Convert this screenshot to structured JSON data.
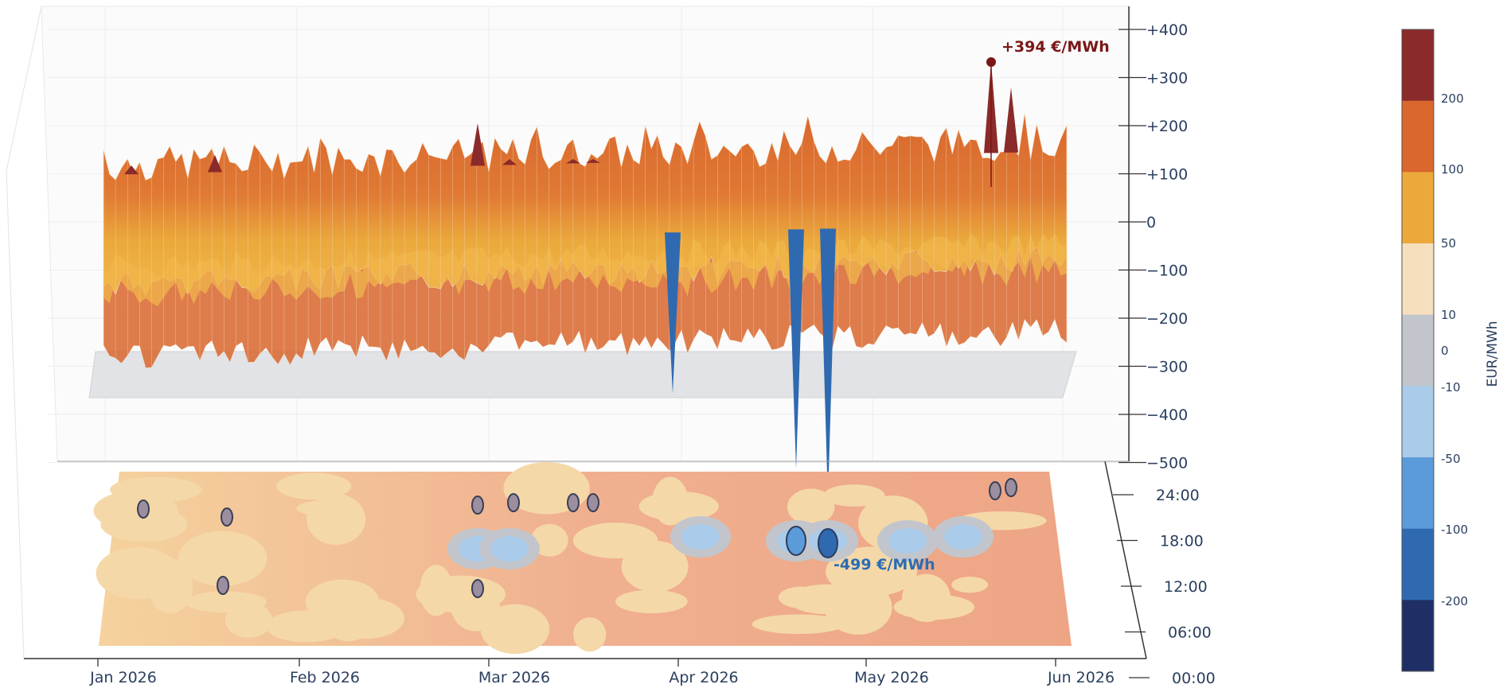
{
  "chart_data": {
    "type": "surface3d",
    "x_axis": {
      "tick_labels": [
        "Jan 2026",
        "Feb 2026",
        "Mar 2026",
        "Apr 2026",
        "May 2026",
        "Jun 2026"
      ],
      "range": [
        "2026-01-01",
        "2026-06-10"
      ]
    },
    "z_axis": {
      "tick_labels": [
        "+400",
        "+300",
        "+200",
        "+100",
        "0",
        "−100",
        "−200",
        "−300",
        "−400",
        "−500"
      ],
      "range": [
        -500,
        400
      ]
    },
    "y_axis": {
      "tick_labels": [
        "24:00",
        "18:00",
        "12:00",
        "06:00",
        "00:00"
      ],
      "range": [
        "00:00",
        "24:00"
      ]
    },
    "annotations": [
      {
        "label": "+394 €/MWh",
        "date": "2026-05-27",
        "hour": 14,
        "value": 394,
        "color": "#7b1717"
      },
      {
        "label": "-499 €/MWh",
        "date": "2026-04-30",
        "hour": 14,
        "value": -499,
        "color": "#2a6db5"
      }
    ],
    "daily_profile": {
      "dates": [
        "2026-01-01",
        "2026-01-15",
        "2026-02-01",
        "2026-02-15",
        "2026-03-01",
        "2026-03-15",
        "2026-04-01",
        "2026-04-15",
        "2026-05-01",
        "2026-05-15",
        "2026-06-01",
        "2026-06-10"
      ],
      "peak_value": [
        95,
        90,
        80,
        85,
        110,
        100,
        95,
        90,
        105,
        110,
        120,
        95
      ],
      "midday_value": [
        30,
        25,
        20,
        20,
        5,
        0,
        -15,
        -25,
        -30,
        -20,
        0,
        10
      ]
    },
    "colorbar": {
      "title": "EUR/MWh",
      "tick_labels": [
        "200",
        "100",
        "50",
        "10",
        "0",
        "-10",
        "-50",
        "-100",
        "-200"
      ],
      "bands": [
        {
          "from": 200,
          "to": 500,
          "color": "#8b2a2a"
        },
        {
          "from": 100,
          "to": 200,
          "color": "#d9672e"
        },
        {
          "from": 50,
          "to": 100,
          "color": "#eba93c"
        },
        {
          "from": 10,
          "to": 50,
          "color": "#f5dfbd"
        },
        {
          "from": -10,
          "to": 10,
          "color": "#c2c6cc"
        },
        {
          "from": -50,
          "to": -10,
          "color": "#aacbea"
        },
        {
          "from": -100,
          "to": -50,
          "color": "#5b9bd9"
        },
        {
          "from": -200,
          "to": -100,
          "color": "#2f6ab0"
        },
        {
          "from": -500,
          "to": -200,
          "color": "#1f2f66"
        }
      ]
    }
  },
  "colors": {
    "axis": "#333333",
    "grid": "#dddddd",
    "floor": "#e1e3e6",
    "label": "#2a3f5f"
  }
}
